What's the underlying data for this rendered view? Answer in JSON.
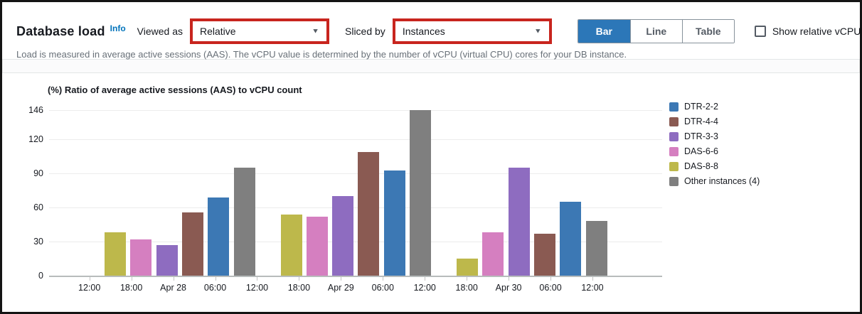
{
  "header": {
    "title": "Database load",
    "info_label": "Info",
    "viewed_as_label": "Viewed as",
    "viewed_as_value": "Relative",
    "sliced_by_label": "Sliced by",
    "sliced_by_value": "Instances",
    "view_buttons": [
      {
        "label": "Bar",
        "active": true
      },
      {
        "label": "Line",
        "active": false
      },
      {
        "label": "Table",
        "active": false
      }
    ],
    "show_relative_vcpu_label": "Show relative vCPU",
    "description": "Load is measured in average active sessions (AAS). The vCPU value is determined by the number of vCPU (virtual CPU) cores for your DB instance."
  },
  "icons": {
    "caret_down": "▼"
  },
  "colors": {
    "highlight_red": "#c8251e",
    "active_button_blue": "#2c77b8",
    "link_blue": "#0073bb",
    "axis_text": "#16191f",
    "subtitle_gray": "#687078"
  },
  "chart_data": {
    "type": "bar",
    "title": "(%) Ratio of average active sessions (AAS) to vCPU count",
    "xlabel": "",
    "ylabel": "",
    "ylim": [
      0,
      146
    ],
    "y_ticks": [
      0,
      30,
      60,
      90,
      120,
      146
    ],
    "x_tick_labels": [
      "12:00",
      "18:00",
      "Apr 28",
      "06:00",
      "12:00",
      "18:00",
      "Apr 29",
      "06:00",
      "12:00",
      "18:00",
      "Apr 30",
      "06:00",
      "12:00"
    ],
    "categories": [
      "Apr 28",
      "Apr 29",
      "Apr 30"
    ],
    "bar_group_order": [
      "DAS-8-8",
      "DAS-6-6",
      "DTR-3-3",
      "DTR-4-4",
      "DTR-2-2",
      "Other instances (4)"
    ],
    "series": [
      {
        "name": "DTR-2-2",
        "color": "#3c78b4",
        "values": [
          69,
          93,
          65
        ]
      },
      {
        "name": "DTR-4-4",
        "color": "#8a5a52",
        "values": [
          56,
          109,
          37
        ]
      },
      {
        "name": "DTR-3-3",
        "color": "#8e6cc0",
        "values": [
          27,
          70,
          95
        ]
      },
      {
        "name": "DAS-6-6",
        "color": "#d57fc0",
        "values": [
          32,
          52,
          38
        ]
      },
      {
        "name": "DAS-8-8",
        "color": "#bdb84b",
        "values": [
          38,
          54,
          15
        ]
      },
      {
        "name": "Other instances (4)",
        "color": "#7f7f7f",
        "values": [
          95,
          146,
          48
        ]
      }
    ],
    "legend_position": "right",
    "grid": true
  }
}
